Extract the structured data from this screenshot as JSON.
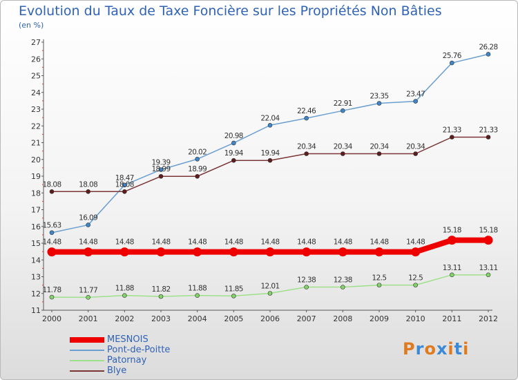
{
  "title": "Evolution du Taux de Taxe Foncière sur les Propriétés Non Bâties",
  "subtitle": "(en %)",
  "logo": {
    "letters": [
      "P",
      "r",
      "o",
      "x",
      "i",
      "t",
      "i"
    ],
    "colors": [
      "#e07a1f",
      "#3c8ad6",
      "#e07a1f",
      "#3c8ad6",
      "#e07a1f",
      "#3c8ad6",
      "#e07a1f"
    ]
  },
  "chart_data": {
    "type": "line",
    "title": "Evolution du Taux de Taxe Foncière sur les Propriétés Non Bâties",
    "ylabel": "(en %)",
    "xlabel": "",
    "x": [
      "2000",
      "2001",
      "2002",
      "2003",
      "2004",
      "2005",
      "2006",
      "2007",
      "2008",
      "2009",
      "2010",
      "2011",
      "2012"
    ],
    "ylim": [
      11,
      27
    ],
    "yticks": [
      "11",
      "12",
      "13",
      "14",
      "15",
      "16",
      "17",
      "18",
      "19",
      "20",
      "21",
      "22",
      "23",
      "24",
      "25",
      "26",
      "27"
    ],
    "grid": false,
    "legend_position": "bottom-left",
    "series": [
      {
        "name": "MESNOIS",
        "color": "#ee0000",
        "markerColor": "#ee0000",
        "thick": true,
        "values": [
          14.48,
          14.48,
          14.48,
          14.48,
          14.48,
          14.48,
          14.48,
          14.48,
          14.48,
          14.48,
          14.48,
          15.18,
          15.18
        ],
        "labels": [
          "14.48",
          "14.48",
          "14.48",
          "14.48",
          "14.48",
          "14.48",
          "14.48",
          "14.48",
          "14.48",
          "14.48",
          "14.48",
          "15.18",
          "15.18"
        ]
      },
      {
        "name": "Pont-de-Poitte",
        "color": "#6a9fd0",
        "markerColor": "#3f86c9",
        "thick": false,
        "values": [
          15.63,
          16.09,
          18.47,
          19.39,
          20.02,
          20.98,
          22.04,
          22.46,
          22.91,
          23.35,
          23.47,
          25.76,
          26.28
        ],
        "labels": [
          "15.63",
          "16.09",
          "18.47",
          "19.39",
          "20.02",
          "20.98",
          "22.04",
          "22.46",
          "22.91",
          "23.35",
          "23.47",
          "25.76",
          "26.28"
        ]
      },
      {
        "name": "Patornay",
        "color": "#9ee08a",
        "markerColor": "#84d36a",
        "thick": false,
        "values": [
          11.78,
          11.77,
          11.88,
          11.82,
          11.88,
          11.85,
          12.01,
          12.38,
          12.38,
          12.5,
          12.5,
          13.11,
          13.11
        ],
        "labels": [
          "11.78",
          "11.77",
          "11.88",
          "11.82",
          "11.88",
          "11.85",
          "12.01",
          "12.38",
          "12.38",
          "12.5",
          "12.5",
          "13.11",
          "13.11"
        ]
      },
      {
        "name": "Blye",
        "color": "#7a3535",
        "markerColor": "#5e1c1c",
        "thick": false,
        "values": [
          18.08,
          18.08,
          18.08,
          18.99,
          18.99,
          19.94,
          19.94,
          20.34,
          20.34,
          20.34,
          20.34,
          21.33,
          21.33
        ],
        "labels": [
          "18.08",
          "18.08",
          "18.08",
          "18.99",
          "18.99",
          "19.94",
          "19.94",
          "20.34",
          "20.34",
          "20.34",
          "20.34",
          "21.33",
          "21.33"
        ]
      }
    ]
  }
}
